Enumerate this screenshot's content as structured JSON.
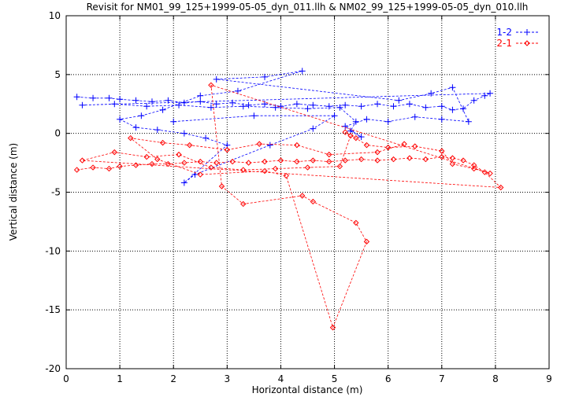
{
  "chart_data": {
    "type": "line",
    "title": "Revisit for NM01_99_125+1999-05-05_dyn_011.llh & NM02_99_125+1999-05-05_dyn_010.llh",
    "xlabel": "Horizontal distance (m)",
    "ylabel": "Vertical distance (m)",
    "xlim": [
      0,
      9
    ],
    "ylim": [
      -20,
      10
    ],
    "xticks": [
      0,
      1,
      2,
      3,
      4,
      5,
      6,
      7,
      8,
      9
    ],
    "yticks": [
      -20,
      -15,
      -10,
      -5,
      0,
      5,
      10
    ],
    "grid": true,
    "legend_position": "top-right",
    "series": [
      {
        "name": "1-2",
        "color": "#0000ff",
        "marker": "plus",
        "points": [
          [
            0.2,
            3.1
          ],
          [
            0.5,
            3.0
          ],
          [
            0.8,
            3.0
          ],
          [
            1.0,
            2.9
          ],
          [
            1.3,
            2.8
          ],
          [
            1.6,
            2.7
          ],
          [
            1.9,
            2.8
          ],
          [
            2.2,
            2.6
          ],
          [
            2.5,
            2.7
          ],
          [
            2.8,
            2.5
          ],
          [
            3.1,
            2.6
          ],
          [
            3.4,
            2.4
          ],
          [
            3.7,
            2.5
          ],
          [
            4.0,
            2.3
          ],
          [
            4.3,
            2.5
          ],
          [
            4.6,
            2.4
          ],
          [
            4.9,
            2.3
          ],
          [
            5.2,
            2.4
          ],
          [
            5.5,
            2.3
          ],
          [
            5.8,
            2.5
          ],
          [
            6.1,
            2.3
          ],
          [
            6.4,
            2.5
          ],
          [
            6.7,
            2.2
          ],
          [
            7.0,
            2.3
          ],
          [
            7.2,
            2.0
          ],
          [
            7.4,
            2.1
          ],
          [
            7.6,
            2.8
          ],
          [
            7.8,
            3.2
          ],
          [
            7.9,
            3.4
          ],
          [
            0.3,
            2.4
          ],
          [
            0.9,
            2.5
          ],
          [
            1.5,
            2.3
          ],
          [
            2.1,
            2.4
          ],
          [
            2.7,
            2.2
          ],
          [
            3.3,
            2.3
          ],
          [
            3.9,
            2.2
          ],
          [
            4.5,
            2.1
          ],
          [
            5.1,
            2.2
          ],
          [
            5.4,
            1.0
          ],
          [
            5.3,
            0.2
          ],
          [
            5.5,
            -0.3
          ],
          [
            5.2,
            0.6
          ],
          [
            5.6,
            1.2
          ],
          [
            6.0,
            1.0
          ],
          [
            6.5,
            1.4
          ],
          [
            7.0,
            1.2
          ],
          [
            7.5,
            1.0
          ],
          [
            7.2,
            3.9
          ],
          [
            6.8,
            3.4
          ],
          [
            6.2,
            2.8
          ],
          [
            2.8,
            4.6
          ],
          [
            3.7,
            4.8
          ],
          [
            4.4,
            5.3
          ],
          [
            3.2,
            3.6
          ],
          [
            2.5,
            3.2
          ],
          [
            1.8,
            2.0
          ],
          [
            1.4,
            1.5
          ],
          [
            1.0,
            1.2
          ],
          [
            1.3,
            0.5
          ],
          [
            1.7,
            0.3
          ],
          [
            2.2,
            0.0
          ],
          [
            2.6,
            -0.4
          ],
          [
            3.0,
            -1.0
          ],
          [
            2.2,
            -4.2
          ],
          [
            2.4,
            -3.5
          ],
          [
            3.8,
            -1.0
          ],
          [
            4.6,
            0.4
          ],
          [
            5.0,
            1.5
          ],
          [
            3.5,
            1.5
          ],
          [
            2.0,
            1.0
          ]
        ]
      },
      {
        "name": "2-1",
        "color": "#ff0000",
        "marker": "diamond",
        "points": [
          [
            0.2,
            -3.1
          ],
          [
            0.5,
            -2.9
          ],
          [
            0.8,
            -3.0
          ],
          [
            1.0,
            -2.8
          ],
          [
            1.3,
            -2.7
          ],
          [
            1.6,
            -2.6
          ],
          [
            1.9,
            -2.6
          ],
          [
            2.2,
            -2.5
          ],
          [
            2.5,
            -2.4
          ],
          [
            2.8,
            -2.5
          ],
          [
            3.1,
            -2.4
          ],
          [
            3.4,
            -2.5
          ],
          [
            3.7,
            -2.4
          ],
          [
            4.0,
            -2.3
          ],
          [
            4.3,
            -2.4
          ],
          [
            4.6,
            -2.3
          ],
          [
            4.9,
            -2.4
          ],
          [
            5.2,
            -2.3
          ],
          [
            5.5,
            -2.2
          ],
          [
            5.8,
            -2.3
          ],
          [
            6.1,
            -2.2
          ],
          [
            6.4,
            -2.1
          ],
          [
            6.7,
            -2.2
          ],
          [
            7.0,
            -2.0
          ],
          [
            7.2,
            -2.1
          ],
          [
            7.4,
            -2.3
          ],
          [
            7.6,
            -2.7
          ],
          [
            7.8,
            -3.3
          ],
          [
            8.1,
            -4.6
          ],
          [
            0.3,
            -2.3
          ],
          [
            0.9,
            -1.6
          ],
          [
            1.5,
            -2.0
          ],
          [
            2.1,
            -1.8
          ],
          [
            2.7,
            -2.9
          ],
          [
            3.3,
            -3.1
          ],
          [
            3.9,
            -3.0
          ],
          [
            4.5,
            -2.9
          ],
          [
            5.1,
            -2.8
          ],
          [
            5.3,
            -0.2
          ],
          [
            5.2,
            0.1
          ],
          [
            5.4,
            -0.4
          ],
          [
            5.6,
            -1.0
          ],
          [
            6.0,
            -1.2
          ],
          [
            6.5,
            -1.1
          ],
          [
            7.0,
            -1.5
          ],
          [
            7.2,
            -2.6
          ],
          [
            7.6,
            -3.0
          ],
          [
            7.9,
            -3.4
          ],
          [
            2.7,
            4.1
          ],
          [
            2.9,
            -4.5
          ],
          [
            3.3,
            -6.0
          ],
          [
            4.4,
            -5.3
          ],
          [
            4.6,
            -5.8
          ],
          [
            5.4,
            -7.6
          ],
          [
            5.6,
            -9.2
          ],
          [
            4.97,
            -16.5
          ],
          [
            4.1,
            -3.6
          ],
          [
            3.7,
            -3.2
          ],
          [
            2.5,
            -3.5
          ],
          [
            1.7,
            -2.2
          ],
          [
            1.2,
            -0.4
          ],
          [
            1.8,
            -0.8
          ],
          [
            2.3,
            -1.0
          ],
          [
            3.0,
            -1.4
          ],
          [
            3.6,
            -0.9
          ],
          [
            4.3,
            -1.0
          ],
          [
            4.9,
            -1.8
          ],
          [
            5.8,
            -1.6
          ],
          [
            6.3,
            -0.9
          ]
        ]
      }
    ]
  }
}
